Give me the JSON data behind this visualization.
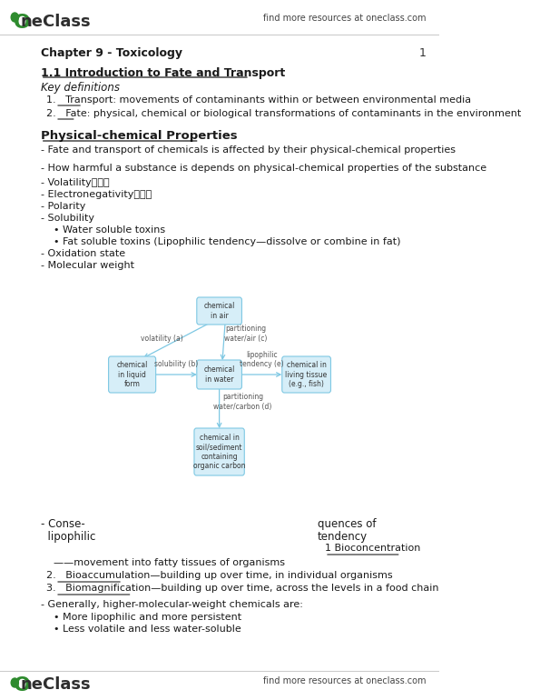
{
  "bg_color": "#ffffff",
  "header_right_text": "find more resources at oneclass.com",
  "footer_right_text": "find more resources at oneclass.com",
  "footer_page_num": "1",
  "chapter_title": "Chapter 9 - Toxicology",
  "section1_title": "1.1 Introduction to Fate and Transport",
  "section1_subtitle": "Key definitions",
  "section1_items": [
    "Transport: movements of contaminants within or between environmental media",
    "Fate: physical, chemical or biological transformations of contaminants in the environment"
  ],
  "section2_title": "Physical-chemical Properties",
  "section2_bullet1": "- Fate and transport of chemicals is affected by their physical-chemical properties",
  "section2_bullet2": "- How harmful a substance is depends on physical-chemical properties of the substance",
  "section2_bullets": [
    "- Volatility据發性",
    "- Electronegativity電負性",
    "- Polarity",
    "- Solubility",
    "    • Water soluble toxins",
    "    • Fat soluble toxins (Lipophilic tendency—dissolve or combine in fat)",
    "- Oxidation state",
    "- Molecular weight"
  ],
  "box_color": "#d6eef8",
  "box_edge_color": "#7ec8e3",
  "arrow_color": "#7ec8e3",
  "bottom_text_left1": "- Conse-",
  "bottom_text_left2": "  lipophilic",
  "bottom_text_right1": "quences of",
  "bottom_text_right2": "tendency",
  "bottom_text_right3": "1 Bioconcentration",
  "numbered_items": [
    "—movement into fatty tissues of organisms",
    "Bioaccumulation—building up over time, in individual organisms",
    "Biomagnification—building up over time, across the levels in a food chain"
  ],
  "final_bullet1": "- Generally, higher-molecular-weight chemicals are:",
  "final_sub_bullets": [
    "• More lipophilic and more persistent",
    "• Less volatile and less water-soluble"
  ]
}
